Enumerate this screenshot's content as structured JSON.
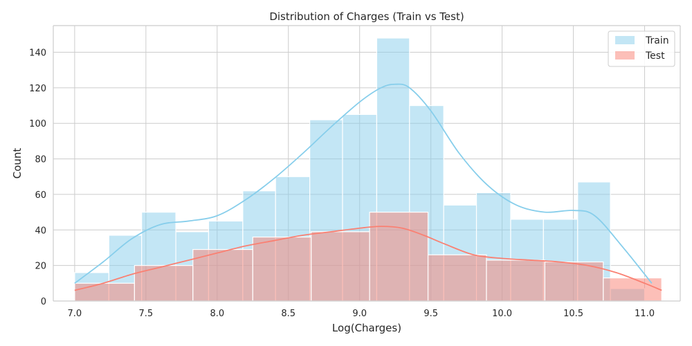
{
  "chart_data": {
    "type": "bar",
    "title": "Distribution of Charges (Train vs Test)",
    "xlabel": "Log(Charges)",
    "ylabel": "Count",
    "xlim": [
      6.85,
      11.25
    ],
    "ylim": [
      0,
      155
    ],
    "xticks": [
      7.0,
      7.5,
      8.0,
      8.5,
      9.0,
      9.5,
      10.0,
      10.5,
      11.0
    ],
    "xtick_labels": [
      "7.0",
      "7.5",
      "8.0",
      "8.5",
      "9.0",
      "9.5",
      "10.0",
      "10.5",
      "11.0"
    ],
    "yticks": [
      0,
      20,
      40,
      60,
      80,
      100,
      120,
      140
    ],
    "ytick_labels": [
      "0",
      "20",
      "40",
      "60",
      "80",
      "100",
      "120",
      "140"
    ],
    "grid": true,
    "legend_position": "top-right",
    "series": [
      {
        "name": "Train",
        "color": "#87ceeb",
        "bins": [
          {
            "x0": 7.0,
            "x1": 7.24,
            "count": 16
          },
          {
            "x0": 7.24,
            "x1": 7.47,
            "count": 37
          },
          {
            "x0": 7.47,
            "x1": 7.71,
            "count": 50
          },
          {
            "x0": 7.71,
            "x1": 7.94,
            "count": 39
          },
          {
            "x0": 7.94,
            "x1": 8.18,
            "count": 45
          },
          {
            "x0": 8.18,
            "x1": 8.41,
            "count": 62
          },
          {
            "x0": 8.41,
            "x1": 8.65,
            "count": 70
          },
          {
            "x0": 8.65,
            "x1": 8.88,
            "count": 102
          },
          {
            "x0": 8.88,
            "x1": 9.12,
            "count": 105
          },
          {
            "x0": 9.12,
            "x1": 9.35,
            "count": 148
          },
          {
            "x0": 9.35,
            "x1": 9.59,
            "count": 110
          },
          {
            "x0": 9.59,
            "x1": 9.82,
            "count": 54
          },
          {
            "x0": 9.82,
            "x1": 10.06,
            "count": 61
          },
          {
            "x0": 10.06,
            "x1": 10.29,
            "count": 46
          },
          {
            "x0": 10.29,
            "x1": 10.53,
            "count": 46
          },
          {
            "x0": 10.53,
            "x1": 10.76,
            "count": 67
          },
          {
            "x0": 10.76,
            "x1": 11.0,
            "count": 7
          }
        ],
        "kde": [
          [
            7.0,
            10
          ],
          [
            7.2,
            22
          ],
          [
            7.4,
            35
          ],
          [
            7.6,
            43
          ],
          [
            7.8,
            45
          ],
          [
            8.0,
            48
          ],
          [
            8.2,
            57
          ],
          [
            8.4,
            69
          ],
          [
            8.6,
            83
          ],
          [
            8.8,
            98
          ],
          [
            9.0,
            112
          ],
          [
            9.15,
            120
          ],
          [
            9.25,
            122
          ],
          [
            9.35,
            120
          ],
          [
            9.5,
            107
          ],
          [
            9.7,
            83
          ],
          [
            9.9,
            65
          ],
          [
            10.1,
            54
          ],
          [
            10.3,
            50
          ],
          [
            10.5,
            51
          ],
          [
            10.65,
            48
          ],
          [
            10.85,
            30
          ],
          [
            11.05,
            10
          ]
        ]
      },
      {
        "name": "Test",
        "color": "#fa8072",
        "bins": [
          {
            "x0": 7.0,
            "x1": 7.42,
            "count": 10
          },
          {
            "x0": 7.42,
            "x1": 7.83,
            "count": 20
          },
          {
            "x0": 7.83,
            "x1": 8.25,
            "count": 29
          },
          {
            "x0": 8.25,
            "x1": 8.66,
            "count": 36
          },
          {
            "x0": 8.66,
            "x1": 9.07,
            "count": 39
          },
          {
            "x0": 9.07,
            "x1": 9.48,
            "count": 50
          },
          {
            "x0": 9.48,
            "x1": 9.89,
            "count": 26
          },
          {
            "x0": 9.89,
            "x1": 10.3,
            "count": 23
          },
          {
            "x0": 10.3,
            "x1": 10.71,
            "count": 22
          },
          {
            "x0": 10.71,
            "x1": 11.12,
            "count": 13
          }
        ],
        "kde": [
          [
            7.0,
            6
          ],
          [
            7.2,
            10
          ],
          [
            7.4,
            15
          ],
          [
            7.6,
            19
          ],
          [
            7.8,
            23
          ],
          [
            8.0,
            27
          ],
          [
            8.2,
            31
          ],
          [
            8.4,
            34
          ],
          [
            8.6,
            37
          ],
          [
            8.8,
            39
          ],
          [
            9.0,
            41
          ],
          [
            9.15,
            42
          ],
          [
            9.3,
            41
          ],
          [
            9.45,
            37
          ],
          [
            9.6,
            32
          ],
          [
            9.8,
            26
          ],
          [
            10.0,
            24
          ],
          [
            10.2,
            23
          ],
          [
            10.4,
            22
          ],
          [
            10.6,
            20
          ],
          [
            10.8,
            16
          ],
          [
            11.0,
            10
          ],
          [
            11.12,
            6
          ]
        ]
      }
    ]
  }
}
